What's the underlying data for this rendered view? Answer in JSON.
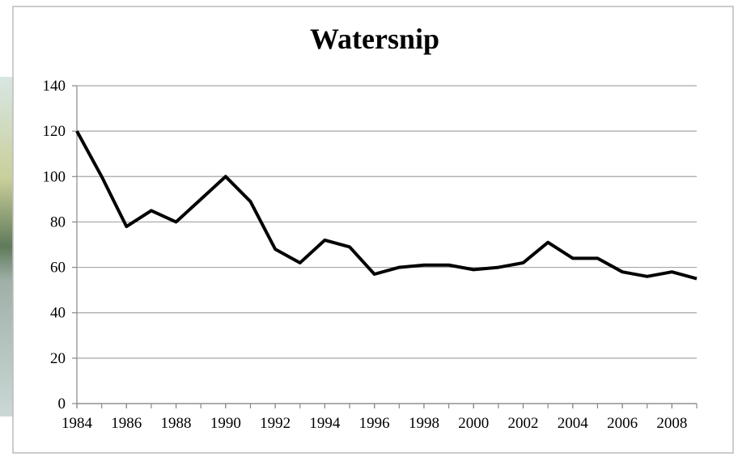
{
  "chart_data": {
    "type": "line",
    "title": "Watersnip",
    "x": [
      1984,
      1985,
      1986,
      1987,
      1988,
      1989,
      1990,
      1991,
      1992,
      1993,
      1994,
      1995,
      1996,
      1997,
      1998,
      1999,
      2000,
      2001,
      2002,
      2003,
      2004,
      2005,
      2006,
      2007,
      2008,
      2009
    ],
    "series": [
      {
        "color": "#000000",
        "values": [
          120,
          100,
          78,
          85,
          80,
          90,
          100,
          89,
          68,
          62,
          72,
          69,
          57,
          60,
          61,
          61,
          59,
          60,
          62,
          71,
          64,
          64,
          58,
          56,
          58,
          55
        ]
      }
    ],
    "xlim": [
      1984,
      2009
    ],
    "xticks": [
      1984,
      1986,
      1988,
      1990,
      1992,
      1994,
      1996,
      1998,
      2000,
      2002,
      2004,
      2006,
      2008
    ],
    "ylim": [
      0,
      140
    ],
    "yticks": [
      0,
      20,
      40,
      60,
      80,
      100,
      120,
      140
    ],
    "grid": true
  }
}
